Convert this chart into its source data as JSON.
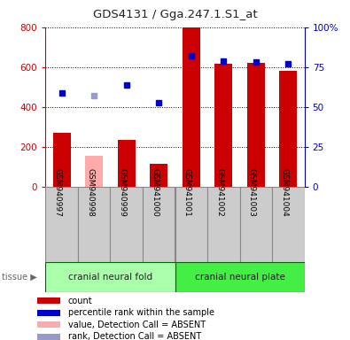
{
  "title": "GDS4131 / Gga.247.1.S1_at",
  "samples": [
    "GSM940997",
    "GSM940998",
    "GSM940999",
    "GSM941000",
    "GSM941001",
    "GSM941002",
    "GSM941003",
    "GSM941004"
  ],
  "bar_values": [
    270,
    155,
    235,
    115,
    800,
    615,
    620,
    580
  ],
  "bar_colors": [
    "#cc0000",
    "#ffaaaa",
    "#cc0000",
    "#cc0000",
    "#cc0000",
    "#cc0000",
    "#cc0000",
    "#cc0000"
  ],
  "rank_values": [
    59,
    57,
    64,
    53,
    82,
    79,
    78,
    77
  ],
  "rank_colors": [
    "#0000cc",
    "#9999cc",
    "#0000cc",
    "#0000cc",
    "#0000cc",
    "#0000cc",
    "#0000cc",
    "#0000cc"
  ],
  "ylim_left": [
    0,
    800
  ],
  "ylim_right": [
    0,
    100
  ],
  "yticks_left": [
    0,
    200,
    400,
    600,
    800
  ],
  "yticks_right": [
    0,
    25,
    50,
    75,
    100
  ],
  "ytick_labels_right": [
    "0",
    "25",
    "50",
    "75",
    "100%"
  ],
  "group1_label": "cranial neural fold",
  "group2_label": "cranial neural plate",
  "group1_indices": [
    0,
    1,
    2,
    3
  ],
  "group2_indices": [
    4,
    5,
    6,
    7
  ],
  "tissue_label": "tissue",
  "legend_items": [
    {
      "label": "count",
      "color": "#cc0000"
    },
    {
      "label": "percentile rank within the sample",
      "color": "#0000cc"
    },
    {
      "label": "value, Detection Call = ABSENT",
      "color": "#ffaaaa"
    },
    {
      "label": "rank, Detection Call = ABSENT",
      "color": "#9999cc"
    }
  ],
  "bg_color": "#ffffff",
  "axis_color_left": "#cc0000",
  "axis_color_right": "#0000bb",
  "group1_color": "#aaffaa",
  "group2_color": "#44ee44",
  "sample_box_color": "#cccccc",
  "sample_box_edge": "#888888"
}
